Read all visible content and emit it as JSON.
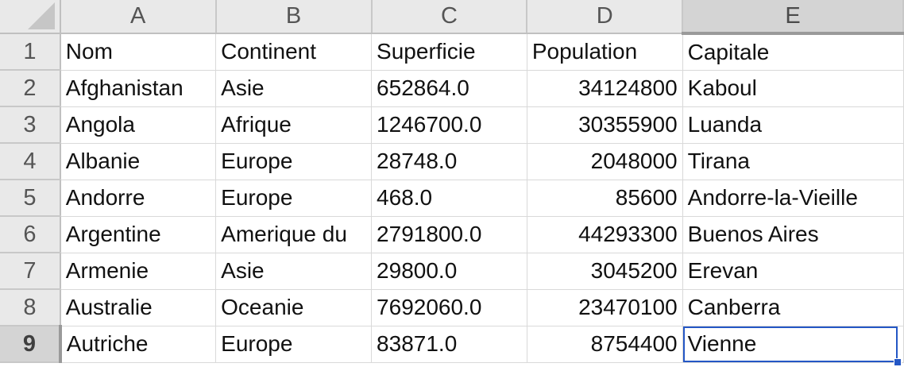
{
  "columns": [
    "A",
    "B",
    "C",
    "D",
    "E"
  ],
  "selected_column": "E",
  "selected_row": 9,
  "rows": [
    {
      "num": "1",
      "cells": [
        "Nom",
        "Continent",
        "Superficie",
        "Population",
        "Capitale"
      ]
    },
    {
      "num": "2",
      "cells": [
        "Afghanistan",
        "Asie",
        "652864.0",
        "34124800",
        "Kaboul"
      ]
    },
    {
      "num": "3",
      "cells": [
        "Angola",
        "Afrique",
        "1246700.0",
        "30355900",
        "Luanda"
      ]
    },
    {
      "num": "4",
      "cells": [
        "Albanie",
        "Europe",
        "28748.0",
        "2048000",
        "Tirana"
      ]
    },
    {
      "num": "5",
      "cells": [
        "Andorre",
        "Europe",
        "468.0",
        "85600",
        "Andorre-la-Vieille"
      ]
    },
    {
      "num": "6",
      "cells": [
        "Argentine",
        "Amerique du",
        "2791800.0",
        "44293300",
        "Buenos Aires"
      ]
    },
    {
      "num": "7",
      "cells": [
        "Armenie",
        "Asie",
        "29800.0",
        "3045200",
        "Erevan"
      ]
    },
    {
      "num": "8",
      "cells": [
        "Australie",
        "Oceanie",
        "7692060.0",
        "23470100",
        "Canberra"
      ]
    },
    {
      "num": "9",
      "cells": [
        "Autriche",
        "Europe",
        "83871.0",
        "8754400",
        "Vienne"
      ]
    }
  ]
}
